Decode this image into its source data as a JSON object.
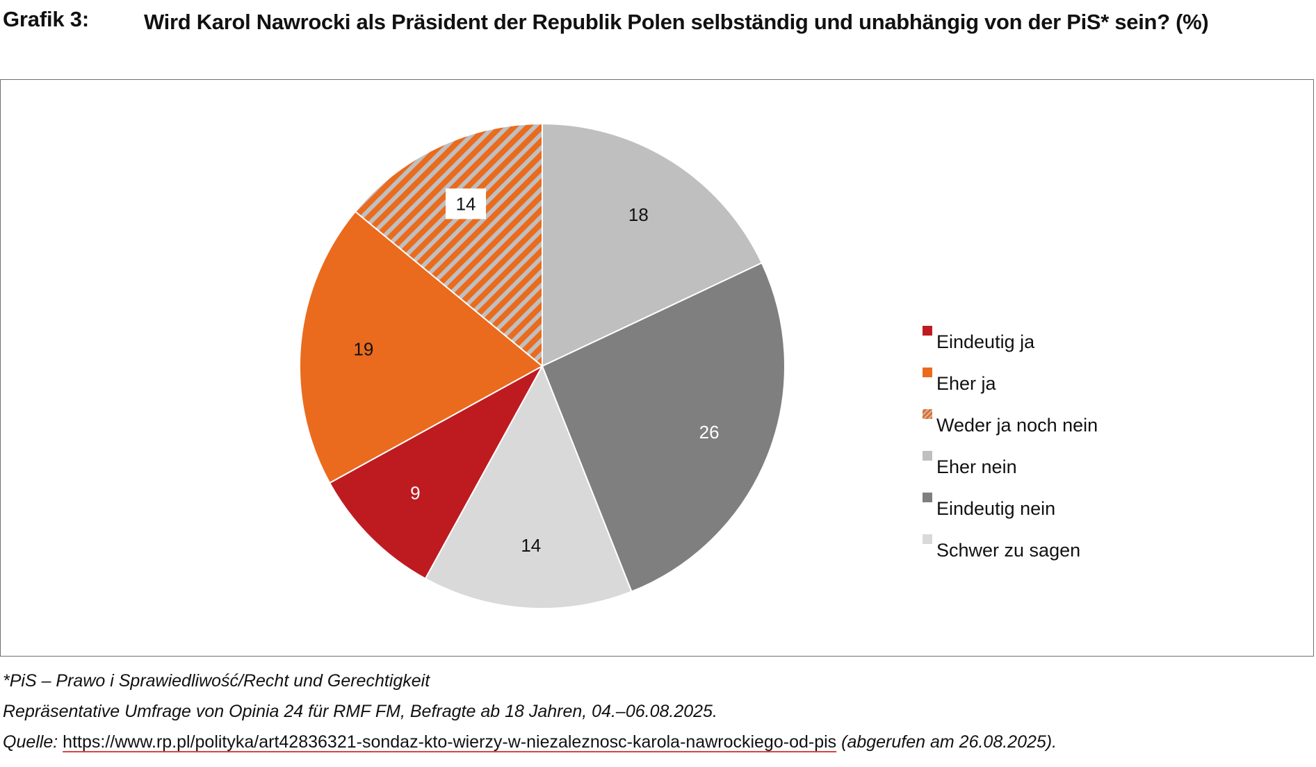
{
  "figure": {
    "label": "Grafik 3:",
    "title": "Wird Karol Nawrocki als Präsident der Republik Polen selbständig und unabhängig von der PiS* sein? (%)"
  },
  "chart_data": {
    "type": "pie",
    "title": "Wird Karol Nawrocki als Präsident der Republik Polen selbständig und unabhängig von der PiS* sein? (%)",
    "unit": "%",
    "legend_position": "right",
    "start_angle": "12 o'clock",
    "direction": "clockwise",
    "slices": [
      {
        "label": "Eher nein",
        "value": 18,
        "color": "#bfbfbf",
        "pattern": "solid",
        "label_color": "#111111",
        "label_box": false
      },
      {
        "label": "Eindeutig nein",
        "value": 26,
        "color": "#7f7f7f",
        "pattern": "solid",
        "label_color": "#ffffff",
        "label_box": false
      },
      {
        "label": "Schwer zu sagen",
        "value": 14,
        "color": "#d9d9d9",
        "pattern": "solid",
        "label_color": "#111111",
        "label_box": false
      },
      {
        "label": "Eindeutig ja",
        "value": 9,
        "color": "#be1b21",
        "pattern": "solid",
        "label_color": "#ffffff",
        "label_box": false
      },
      {
        "label": "Eher ja",
        "value": 19,
        "color": "#ea6b1e",
        "pattern": "solid",
        "label_color": "#111111",
        "label_box": false
      },
      {
        "label": "Weder ja noch nein",
        "value": 14,
        "color": "#ea6b1e",
        "pattern": "diagonal-stripes",
        "stripe_color": "#bfbfbf",
        "label_color": "#111111",
        "label_box": true
      }
    ],
    "legend_order": [
      "Eindeutig ja",
      "Eher ja",
      "Weder ja noch nein",
      "Eher nein",
      "Eindeutig nein",
      "Schwer zu sagen"
    ]
  },
  "notes": {
    "footnote": "*PiS – Prawo i Sprawiedliwość/Recht und Gerechtigkeit",
    "survey": "Repräsentative Umfrage von Opinia 24 für RMF FM, Befragte ab 18 Jahren, 04.–06.08.2025.",
    "source_prefix": "Quelle: ",
    "source_url": "https://www.rp.pl/polityka/art42836321-sondaz-kto-wierzy-w-niezaleznosc-karola-nawrockiego-od-pis",
    "source_suffix": " (abgerufen am 26.08.2025)."
  }
}
